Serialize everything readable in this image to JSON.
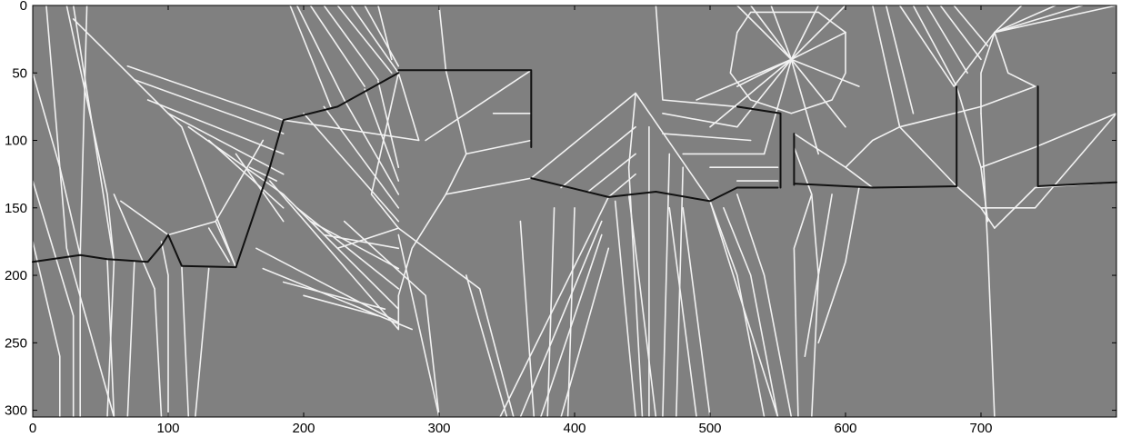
{
  "chart_data": {
    "type": "image",
    "xlabel": "",
    "ylabel": "",
    "xlim": [
      0,
      800
    ],
    "ylim": [
      305,
      0
    ],
    "xticks": [
      0,
      100,
      200,
      300,
      400,
      500,
      600,
      700
    ],
    "yticks": [
      0,
      50,
      100,
      150,
      200,
      250,
      300
    ],
    "grid": false,
    "colors": {
      "background": "#808080",
      "ridge": "#f2f2f2",
      "edge": "#111111",
      "axis": "#000000"
    },
    "dark_polylines": [
      [
        [
          0,
          190
        ],
        [
          35,
          185
        ],
        [
          55,
          188
        ],
        [
          85,
          190
        ],
        [
          95,
          178
        ],
        [
          100,
          170
        ],
        [
          110,
          193
        ],
        [
          150,
          194
        ]
      ],
      [
        [
          150,
          194
        ],
        [
          175,
          120
        ],
        [
          185,
          85
        ],
        [
          225,
          75
        ],
        [
          270,
          50
        ]
      ],
      [
        [
          270,
          48
        ],
        [
          368,
          48
        ],
        [
          368,
          105
        ]
      ],
      [
        [
          368,
          128
        ],
        [
          425,
          142
        ],
        [
          460,
          138
        ],
        [
          500,
          145
        ],
        [
          520,
          135
        ],
        [
          550,
          135
        ]
      ],
      [
        [
          552,
          135
        ],
        [
          552,
          80
        ],
        [
          520,
          75
        ]
      ],
      [
        [
          562,
          133
        ],
        [
          562,
          95
        ]
      ],
      [
        [
          562,
          132
        ],
        [
          620,
          135
        ],
        [
          682,
          134
        ],
        [
          682,
          60
        ]
      ],
      [
        [
          742,
          60
        ],
        [
          742,
          134
        ],
        [
          800,
          131
        ]
      ]
    ],
    "white_polylines": [
      [
        [
          0,
          50
        ],
        [
          20,
          120
        ],
        [
          35,
          185
        ],
        [
          35,
          305
        ]
      ],
      [
        [
          0,
          130
        ],
        [
          30,
          230
        ],
        [
          30,
          305
        ]
      ],
      [
        [
          0,
          175
        ],
        [
          20,
          260
        ],
        [
          20,
          305
        ]
      ],
      [
        [
          10,
          0
        ],
        [
          25,
          180
        ],
        [
          60,
          305
        ]
      ],
      [
        [
          25,
          0
        ],
        [
          55,
          140
        ],
        [
          60,
          190
        ],
        [
          55,
          305
        ]
      ],
      [
        [
          40,
          0
        ],
        [
          35,
          185
        ]
      ],
      [
        [
          30,
          0
        ],
        [
          60,
          190
        ]
      ],
      [
        [
          30,
          10
        ],
        [
          110,
          90
        ],
        [
          150,
          194
        ]
      ],
      [
        [
          60,
          140
        ],
        [
          90,
          210
        ],
        [
          95,
          305
        ]
      ],
      [
        [
          95,
          175
        ],
        [
          100,
          200
        ],
        [
          100,
          305
        ]
      ],
      [
        [
          55,
          188
        ],
        [
          60,
          305
        ]
      ],
      [
        [
          75,
          190
        ],
        [
          70,
          305
        ]
      ],
      [
        [
          110,
          193
        ],
        [
          115,
          305
        ]
      ],
      [
        [
          130,
          195
        ],
        [
          120,
          305
        ]
      ],
      [
        [
          130,
          165
        ],
        [
          145,
          190
        ]
      ],
      [
        [
          65,
          145
        ],
        [
          100,
          170
        ],
        [
          135,
          160
        ]
      ],
      [
        [
          150,
          194
        ],
        [
          135,
          160
        ],
        [
          170,
          100
        ]
      ],
      [
        [
          70,
          45
        ],
        [
          185,
          85
        ]
      ],
      [
        [
          75,
          55
        ],
        [
          185,
          95
        ]
      ],
      [
        [
          85,
          70
        ],
        [
          185,
          110
        ]
      ],
      [
        [
          100,
          80
        ],
        [
          185,
          125
        ]
      ],
      [
        [
          115,
          90
        ],
        [
          185,
          140
        ]
      ],
      [
        [
          130,
          100
        ],
        [
          185,
          150
        ]
      ],
      [
        [
          150,
          110
        ],
        [
          185,
          160
        ]
      ],
      [
        [
          160,
          120
        ],
        [
          180,
          130
        ]
      ],
      [
        [
          175,
          130
        ],
        [
          270,
          240
        ]
      ],
      [
        [
          185,
          140
        ],
        [
          270,
          225
        ]
      ],
      [
        [
          195,
          150
        ],
        [
          270,
          210
        ]
      ],
      [
        [
          205,
          160
        ],
        [
          270,
          195
        ]
      ],
      [
        [
          215,
          170
        ],
        [
          270,
          180
        ]
      ],
      [
        [
          225,
          180
        ],
        [
          270,
          165
        ]
      ],
      [
        [
          165,
          180
        ],
        [
          270,
          235
        ]
      ],
      [
        [
          170,
          195
        ],
        [
          280,
          240
        ]
      ],
      [
        [
          185,
          205
        ],
        [
          260,
          225
        ]
      ],
      [
        [
          200,
          215
        ],
        [
          255,
          230
        ]
      ],
      [
        [
          185,
          85
        ],
        [
          285,
          100
        ],
        [
          270,
          50
        ]
      ],
      [
        [
          200,
          80
        ],
        [
          270,
          160
        ]
      ],
      [
        [
          215,
          75
        ],
        [
          270,
          150
        ]
      ],
      [
        [
          230,
          70
        ],
        [
          270,
          140
        ]
      ],
      [
        [
          245,
          62
        ],
        [
          270,
          130
        ]
      ],
      [
        [
          255,
          56
        ],
        [
          270,
          120
        ]
      ],
      [
        [
          190,
          0
        ],
        [
          220,
          75
        ]
      ],
      [
        [
          195,
          0
        ],
        [
          230,
          70
        ]
      ],
      [
        [
          205,
          0
        ],
        [
          245,
          60
        ]
      ],
      [
        [
          215,
          0
        ],
        [
          255,
          55
        ]
      ],
      [
        [
          225,
          0
        ],
        [
          265,
          50
        ]
      ],
      [
        [
          235,
          0
        ],
        [
          270,
          50
        ]
      ],
      [
        [
          245,
          0
        ],
        [
          270,
          45
        ]
      ],
      [
        [
          255,
          0
        ],
        [
          265,
          40
        ]
      ],
      [
        [
          270,
          50
        ],
        [
          250,
          140
        ],
        [
          270,
          165
        ]
      ],
      [
        [
          230,
          160
        ],
        [
          290,
          215
        ],
        [
          300,
          305
        ]
      ],
      [
        [
          270,
          170
        ],
        [
          300,
          305
        ]
      ],
      [
        [
          300,
          0
        ],
        [
          305,
          48
        ],
        [
          320,
          110
        ],
        [
          305,
          140
        ],
        [
          280,
          180
        ],
        [
          270,
          215
        ],
        [
          270,
          240
        ]
      ],
      [
        [
          305,
          140
        ],
        [
          368,
          128
        ]
      ],
      [
        [
          320,
          110
        ],
        [
          368,
          100
        ]
      ],
      [
        [
          340,
          80
        ],
        [
          368,
          80
        ]
      ],
      [
        [
          290,
          100
        ],
        [
          368,
          48
        ]
      ],
      [
        [
          270,
          165
        ],
        [
          330,
          210
        ],
        [
          355,
          305
        ]
      ],
      [
        [
          320,
          200
        ],
        [
          350,
          305
        ]
      ],
      [
        [
          345,
          305
        ],
        [
          425,
          142
        ]
      ],
      [
        [
          360,
          305
        ],
        [
          420,
          160
        ]
      ],
      [
        [
          375,
          305
        ],
        [
          420,
          170
        ]
      ],
      [
        [
          390,
          305
        ],
        [
          425,
          180
        ]
      ],
      [
        [
          360,
          160
        ],
        [
          370,
          305
        ]
      ],
      [
        [
          385,
          150
        ],
        [
          380,
          305
        ]
      ],
      [
        [
          400,
          150
        ],
        [
          395,
          305
        ]
      ],
      [
        [
          368,
          128
        ],
        [
          445,
          65
        ],
        [
          500,
          145
        ]
      ],
      [
        [
          390,
          135
        ],
        [
          445,
          90
        ]
      ],
      [
        [
          410,
          138
        ],
        [
          445,
          110
        ]
      ],
      [
        [
          425,
          142
        ],
        [
          445,
          125
        ]
      ],
      [
        [
          445,
          65
        ],
        [
          440,
          120
        ],
        [
          450,
          305
        ]
      ],
      [
        [
          455,
          90
        ],
        [
          455,
          305
        ]
      ],
      [
        [
          470,
          110
        ],
        [
          465,
          305
        ]
      ],
      [
        [
          480,
          120
        ],
        [
          475,
          305
        ]
      ],
      [
        [
          440,
          140
        ],
        [
          460,
          305
        ]
      ],
      [
        [
          430,
          145
        ],
        [
          445,
          305
        ]
      ],
      [
        [
          500,
          145
        ],
        [
          520,
          200
        ],
        [
          540,
          305
        ]
      ],
      [
        [
          510,
          150
        ],
        [
          530,
          200
        ],
        [
          550,
          305
        ]
      ],
      [
        [
          520,
          140
        ],
        [
          540,
          200
        ],
        [
          560,
          305
        ]
      ],
      [
        [
          500,
          145
        ],
        [
          550,
          305
        ]
      ],
      [
        [
          480,
          150
        ],
        [
          500,
          305
        ]
      ],
      [
        [
          470,
          150
        ],
        [
          490,
          305
        ]
      ],
      [
        [
          460,
          0
        ],
        [
          465,
          70
        ],
        [
          520,
          75
        ]
      ],
      [
        [
          465,
          80
        ],
        [
          520,
          90
        ]
      ],
      [
        [
          465,
          95
        ],
        [
          530,
          100
        ]
      ],
      [
        [
          480,
          110
        ],
        [
          540,
          110
        ]
      ],
      [
        [
          500,
          120
        ],
        [
          550,
          120
        ]
      ],
      [
        [
          520,
          130
        ],
        [
          550,
          130
        ]
      ],
      [
        [
          520,
          0
        ],
        [
          560,
          40
        ],
        [
          600,
          0
        ]
      ],
      [
        [
          560,
          40
        ],
        [
          530,
          0
        ]
      ],
      [
        [
          560,
          40
        ],
        [
          545,
          0
        ]
      ],
      [
        [
          560,
          40
        ],
        [
          580,
          0
        ]
      ],
      [
        [
          560,
          40
        ],
        [
          600,
          20
        ]
      ],
      [
        [
          560,
          40
        ],
        [
          520,
          60
        ]
      ],
      [
        [
          560,
          40
        ],
        [
          520,
          90
        ]
      ],
      [
        [
          560,
          40
        ],
        [
          540,
          110
        ]
      ],
      [
        [
          560,
          40
        ],
        [
          580,
          110
        ]
      ],
      [
        [
          560,
          40
        ],
        [
          600,
          90
        ]
      ],
      [
        [
          560,
          40
        ],
        [
          610,
          60
        ]
      ],
      [
        [
          560,
          40
        ],
        [
          490,
          70
        ]
      ],
      [
        [
          560,
          40
        ],
        [
          500,
          90
        ]
      ],
      [
        [
          520,
          20
        ],
        [
          530,
          5
        ],
        [
          560,
          5
        ],
        [
          580,
          5
        ],
        [
          600,
          20
        ]
      ],
      [
        [
          520,
          20
        ],
        [
          515,
          50
        ],
        [
          530,
          70
        ],
        [
          560,
          80
        ],
        [
          590,
          70
        ],
        [
          600,
          50
        ],
        [
          600,
          20
        ]
      ],
      [
        [
          562,
          95
        ],
        [
          600,
          120
        ],
        [
          620,
          135
        ]
      ],
      [
        [
          562,
          105
        ],
        [
          575,
          140
        ],
        [
          580,
          200
        ],
        [
          575,
          305
        ]
      ],
      [
        [
          575,
          140
        ],
        [
          562,
          180
        ],
        [
          565,
          305
        ]
      ],
      [
        [
          590,
          140
        ],
        [
          580,
          200
        ],
        [
          570,
          260
        ]
      ],
      [
        [
          610,
          135
        ],
        [
          600,
          190
        ],
        [
          580,
          250
        ]
      ],
      [
        [
          620,
          0
        ],
        [
          640,
          90
        ],
        [
          682,
          134
        ]
      ],
      [
        [
          640,
          90
        ],
        [
          700,
          75
        ],
        [
          740,
          60
        ]
      ],
      [
        [
          640,
          90
        ],
        [
          620,
          100
        ],
        [
          600,
          120
        ]
      ],
      [
        [
          630,
          0
        ],
        [
          650,
          80
        ]
      ],
      [
        [
          640,
          0
        ],
        [
          680,
          60
        ],
        [
          710,
          20
        ]
      ],
      [
        [
          650,
          0
        ],
        [
          682,
          60
        ]
      ],
      [
        [
          660,
          0
        ],
        [
          690,
          50
        ]
      ],
      [
        [
          670,
          0
        ],
        [
          700,
          40
        ]
      ],
      [
        [
          680,
          0
        ],
        [
          705,
          30
        ]
      ],
      [
        [
          710,
          20
        ],
        [
          700,
          50
        ],
        [
          700,
          80
        ]
      ],
      [
        [
          710,
          20
        ],
        [
          720,
          50
        ],
        [
          740,
          60
        ]
      ],
      [
        [
          710,
          20
        ],
        [
          730,
          0
        ]
      ],
      [
        [
          710,
          20
        ],
        [
          755,
          0
        ]
      ],
      [
        [
          710,
          20
        ],
        [
          775,
          0
        ]
      ],
      [
        [
          710,
          20
        ],
        [
          800,
          0
        ]
      ],
      [
        [
          700,
          80
        ],
        [
          705,
          180
        ],
        [
          710,
          305
        ]
      ],
      [
        [
          682,
          60
        ],
        [
          700,
          120
        ],
        [
          705,
          160
        ]
      ],
      [
        [
          700,
          120
        ],
        [
          740,
          105
        ],
        [
          800,
          80
        ]
      ],
      [
        [
          700,
          150
        ],
        [
          740,
          150
        ],
        [
          800,
          80
        ]
      ],
      [
        [
          710,
          165
        ],
        [
          740,
          135
        ],
        [
          800,
          131
        ]
      ],
      [
        [
          682,
          134
        ],
        [
          700,
          150
        ],
        [
          710,
          165
        ]
      ]
    ]
  }
}
